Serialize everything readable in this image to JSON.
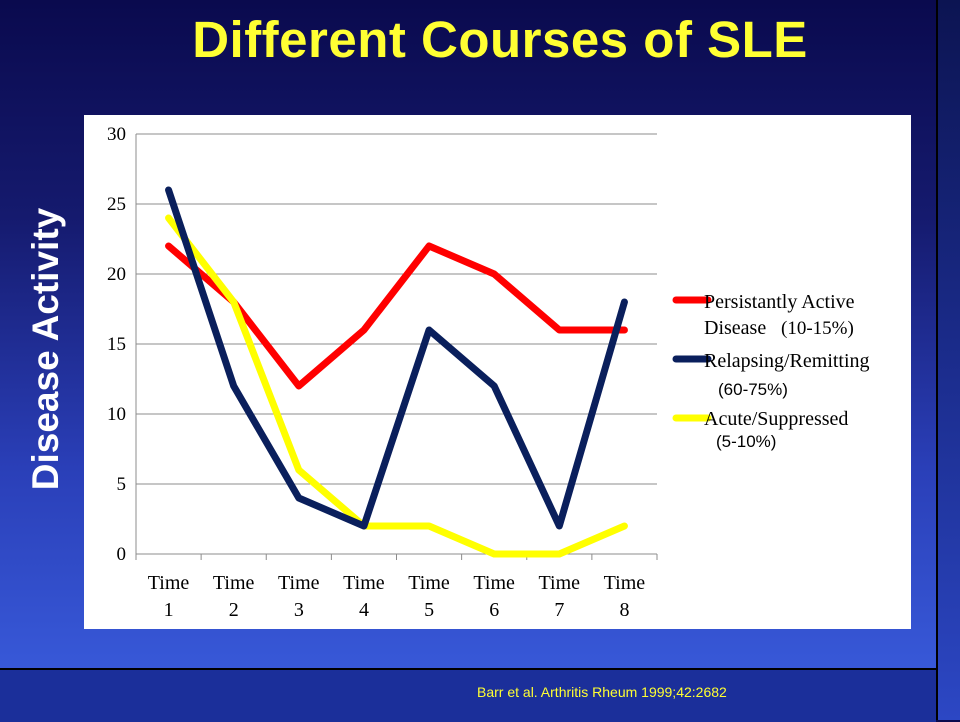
{
  "title": "Different Courses of SLE",
  "citation": "Barr et al. Arthritis Rheum 1999;42:2682",
  "chart_data": {
    "type": "line",
    "ylabel": "Disease Activity",
    "ylim": [
      0,
      30
    ],
    "yticks": [
      0,
      5,
      10,
      15,
      20,
      25,
      30
    ],
    "grid": true,
    "legend_position": "right",
    "categories": [
      [
        "Time",
        "1"
      ],
      [
        "Time",
        "2"
      ],
      [
        "Time",
        "3"
      ],
      [
        "Time",
        "4"
      ],
      [
        "Time",
        "5"
      ],
      [
        "Time",
        "6"
      ],
      [
        "Time",
        "7"
      ],
      [
        "Time",
        "8"
      ]
    ],
    "series": [
      {
        "name": "Persistantly Active Disease",
        "values": [
          22,
          18,
          12,
          16,
          22,
          20,
          16,
          16
        ],
        "color": "#ff0000",
        "legend_lines": [
          "Persistantly Active",
          "Disease"
        ],
        "share": "(10-15%)"
      },
      {
        "name": "Relapsing/Remitting",
        "values": [
          26,
          12,
          4,
          2,
          16,
          12,
          2,
          18
        ],
        "color": "#0a1f5c",
        "legend_lines": [
          "Relapsing/Remitting"
        ],
        "share": "(60-75%)"
      },
      {
        "name": "Acute/Suppressed",
        "values": [
          24,
          18,
          6,
          2,
          2,
          0,
          0,
          2
        ],
        "color": "#ffff00",
        "legend_lines": [
          "Acute/Suppressed"
        ],
        "share": "(5-10%)"
      }
    ]
  }
}
